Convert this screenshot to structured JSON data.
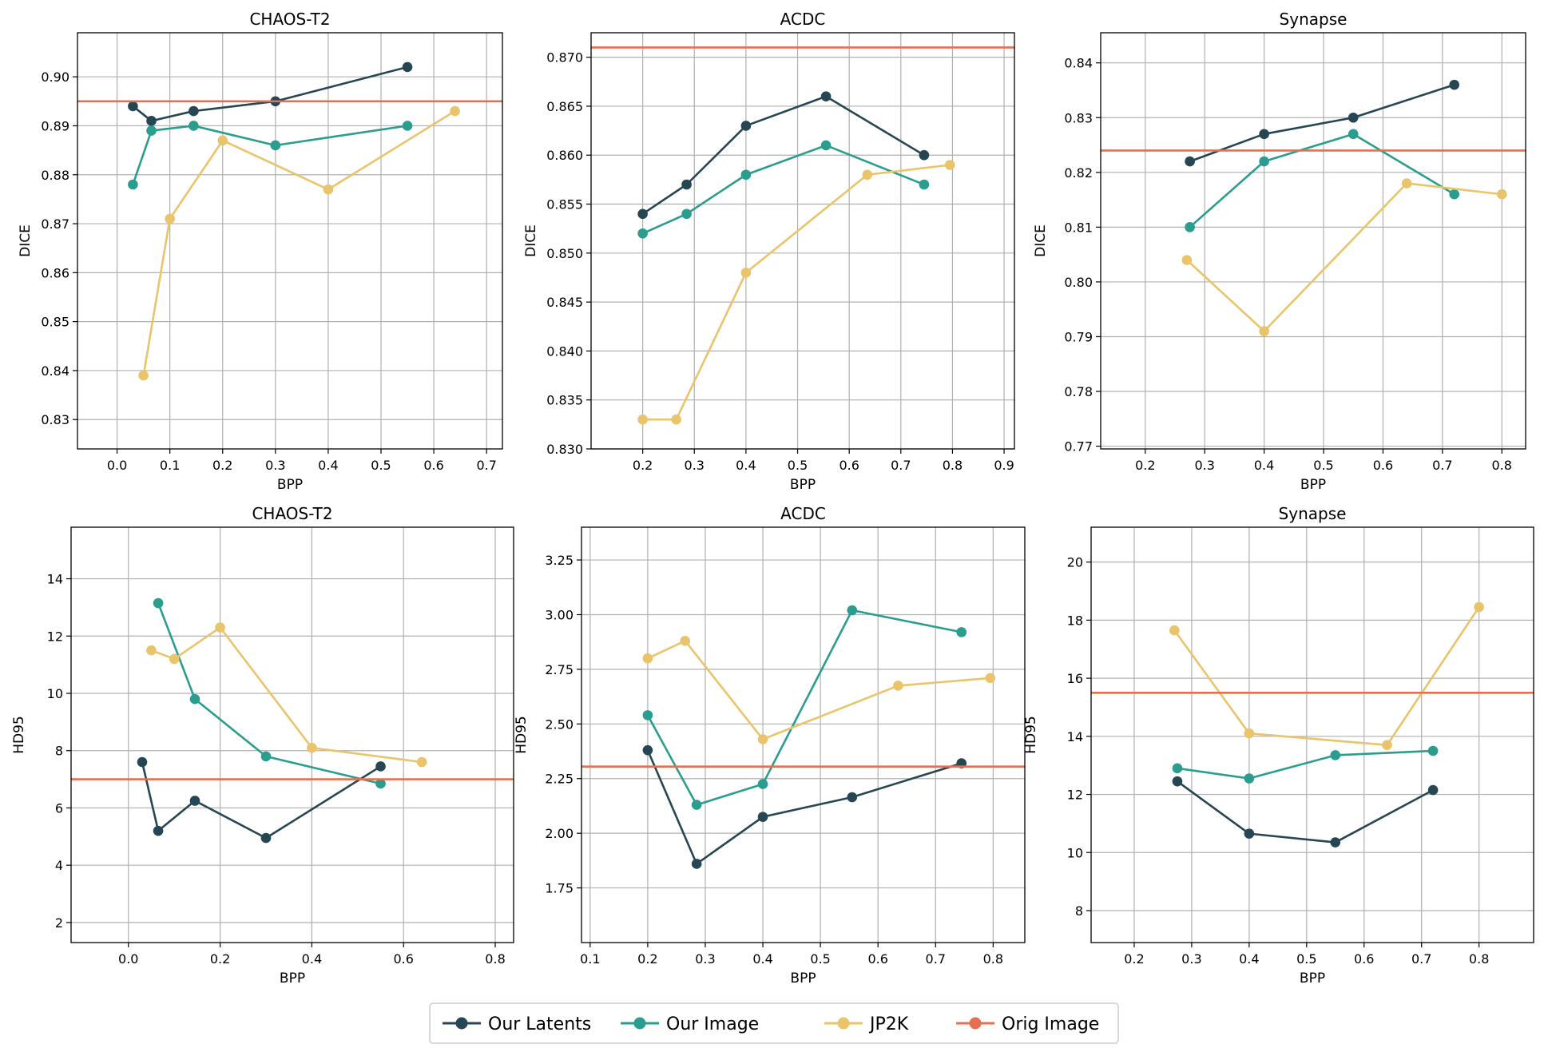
{
  "figure": {
    "colors": {
      "latents": "#264653",
      "image": "#2a9d8f",
      "jp2k": "#e9c46a",
      "orig": "#e76f51",
      "grid": "#b0b0b0",
      "frame": "#000000"
    }
  },
  "legend": [
    {
      "label": "Our Latents",
      "color": "#264653",
      "marker": "circle"
    },
    {
      "label": "Our Image",
      "color": "#2a9d8f",
      "marker": "circle"
    },
    {
      "label": "JP2K",
      "color": "#e9c46a",
      "marker": "circle"
    },
    {
      "label": "Orig Image",
      "color": "#e76f51",
      "marker": "line"
    }
  ],
  "chart_data": [
    {
      "type": "line",
      "title": "CHAOS-T2",
      "xlabel": "BPP",
      "ylabel": "DICE",
      "xlim": [
        -0.075,
        0.73
      ],
      "ylim": [
        0.824,
        0.909
      ],
      "xticks": [
        0.0,
        0.1,
        0.2,
        0.3,
        0.4,
        0.5,
        0.6,
        0.7
      ],
      "xtick_labels": [
        "0.0",
        "0.1",
        "0.2",
        "0.3",
        "0.4",
        "0.5",
        "0.6",
        "0.7"
      ],
      "yticks": [
        0.83,
        0.84,
        0.85,
        0.86,
        0.87,
        0.88,
        0.89,
        0.9
      ],
      "ytick_labels": [
        "0.83",
        "0.84",
        "0.85",
        "0.86",
        "0.87",
        "0.88",
        "0.89",
        "0.90"
      ],
      "grid": true,
      "hline": {
        "name": "Orig Image",
        "value": 0.895
      },
      "series": [
        {
          "name": "Our Latents",
          "x": [
            0.03,
            0.065,
            0.145,
            0.3,
            0.55
          ],
          "y": [
            0.894,
            0.891,
            0.893,
            0.895,
            0.902
          ]
        },
        {
          "name": "Our Image",
          "x": [
            0.03,
            0.065,
            0.145,
            0.3,
            0.55
          ],
          "y": [
            0.878,
            0.889,
            0.89,
            0.886,
            0.89
          ]
        },
        {
          "name": "JP2K",
          "x": [
            0.05,
            0.1,
            0.2,
            0.4,
            0.64
          ],
          "y": [
            0.839,
            0.871,
            0.887,
            0.877,
            0.893
          ]
        }
      ]
    },
    {
      "type": "line",
      "title": "ACDC",
      "xlabel": "BPP",
      "ylabel": "DICE",
      "xlim": [
        0.1,
        0.92
      ],
      "ylim": [
        0.83,
        0.8725
      ],
      "xticks": [
        0.2,
        0.3,
        0.4,
        0.5,
        0.6,
        0.7,
        0.8,
        0.9
      ],
      "xtick_labels": [
        "0.2",
        "0.3",
        "0.4",
        "0.5",
        "0.6",
        "0.7",
        "0.8",
        "0.9"
      ],
      "yticks": [
        0.83,
        0.835,
        0.84,
        0.845,
        0.85,
        0.855,
        0.86,
        0.865,
        0.87
      ],
      "ytick_labels": [
        "0.830",
        "0.835",
        "0.840",
        "0.845",
        "0.850",
        "0.855",
        "0.860",
        "0.865",
        "0.870"
      ],
      "grid": true,
      "hline": {
        "name": "Orig Image",
        "value": 0.871
      },
      "series": [
        {
          "name": "Our Latents",
          "x": [
            0.2,
            0.285,
            0.4,
            0.555,
            0.745
          ],
          "y": [
            0.854,
            0.857,
            0.863,
            0.866,
            0.86
          ]
        },
        {
          "name": "Our Image",
          "x": [
            0.2,
            0.285,
            0.4,
            0.555,
            0.745
          ],
          "y": [
            0.852,
            0.854,
            0.858,
            0.861,
            0.857
          ]
        },
        {
          "name": "JP2K",
          "x": [
            0.2,
            0.265,
            0.4,
            0.635,
            0.795
          ],
          "y": [
            0.833,
            0.833,
            0.848,
            0.858,
            0.859
          ]
        }
      ]
    },
    {
      "type": "line",
      "title": "Synapse",
      "xlabel": "BPP",
      "ylabel": "DICE",
      "xlim": [
        0.125,
        0.84
      ],
      "ylim": [
        0.7695,
        0.8455
      ],
      "xticks": [
        0.2,
        0.3,
        0.4,
        0.5,
        0.6,
        0.7,
        0.8
      ],
      "xtick_labels": [
        "0.2",
        "0.3",
        "0.4",
        "0.5",
        "0.6",
        "0.7",
        "0.8"
      ],
      "yticks": [
        0.77,
        0.78,
        0.79,
        0.8,
        0.81,
        0.82,
        0.83,
        0.84
      ],
      "ytick_labels": [
        "0.77",
        "0.78",
        "0.79",
        "0.80",
        "0.81",
        "0.82",
        "0.83",
        "0.84"
      ],
      "grid": true,
      "hline": {
        "name": "Orig Image",
        "value": 0.824
      },
      "series": [
        {
          "name": "Our Latents",
          "x": [
            0.275,
            0.4,
            0.55,
            0.72
          ],
          "y": [
            0.822,
            0.827,
            0.83,
            0.836
          ]
        },
        {
          "name": "Our Image",
          "x": [
            0.275,
            0.4,
            0.55,
            0.72
          ],
          "y": [
            0.81,
            0.822,
            0.827,
            0.816
          ]
        },
        {
          "name": "JP2K",
          "x": [
            0.27,
            0.4,
            0.64,
            0.8
          ],
          "y": [
            0.804,
            0.791,
            0.818,
            0.816
          ]
        }
      ]
    },
    {
      "type": "line",
      "title": "CHAOS-T2",
      "xlabel": "BPP",
      "ylabel": "HD95",
      "xlim": [
        -0.125,
        0.84
      ],
      "ylim": [
        1.3,
        15.8
      ],
      "xticks": [
        0.0,
        0.2,
        0.4,
        0.6,
        0.8
      ],
      "xtick_labels": [
        "0.0",
        "0.2",
        "0.4",
        "0.6",
        "0.8"
      ],
      "yticks": [
        2,
        4,
        6,
        8,
        10,
        12,
        14
      ],
      "ytick_labels": [
        "2",
        "4",
        "6",
        "8",
        "10",
        "12",
        "14"
      ],
      "grid": true,
      "hline": {
        "name": "Orig Image",
        "value": 7.0
      },
      "series": [
        {
          "name": "Our Latents",
          "x": [
            0.03,
            0.065,
            0.145,
            0.3,
            0.55
          ],
          "y": [
            7.6,
            5.2,
            6.25,
            4.95,
            7.45
          ]
        },
        {
          "name": "Our Image",
          "x": [
            0.065,
            0.145,
            0.3,
            0.55
          ],
          "y": [
            13.15,
            9.8,
            7.8,
            6.85
          ]
        },
        {
          "name": "JP2K",
          "x": [
            0.05,
            0.1,
            0.2,
            0.4,
            0.64
          ],
          "y": [
            11.5,
            11.2,
            12.3,
            8.1,
            7.6
          ]
        }
      ]
    },
    {
      "type": "line",
      "title": "ACDC",
      "xlabel": "BPP",
      "ylabel": "HD95",
      "xlim": [
        0.085,
        0.855
      ],
      "ylim": [
        1.5,
        3.4
      ],
      "xticks": [
        0.1,
        0.2,
        0.3,
        0.4,
        0.5,
        0.6,
        0.7,
        0.8
      ],
      "xtick_labels": [
        "0.1",
        "0.2",
        "0.3",
        "0.4",
        "0.5",
        "0.6",
        "0.7",
        "0.8"
      ],
      "yticks": [
        1.75,
        2.0,
        2.25,
        2.5,
        2.75,
        3.0,
        3.25
      ],
      "ytick_labels": [
        "1.75",
        "2.00",
        "2.25",
        "2.50",
        "2.75",
        "3.00",
        "3.25"
      ],
      "grid": true,
      "hline": {
        "name": "Orig Image",
        "value": 2.305
      },
      "series": [
        {
          "name": "Our Latents",
          "x": [
            0.2,
            0.285,
            0.4,
            0.555,
            0.745
          ],
          "y": [
            2.38,
            1.86,
            2.075,
            2.165,
            2.32
          ]
        },
        {
          "name": "Our Image",
          "x": [
            0.2,
            0.285,
            0.4,
            0.555,
            0.745
          ],
          "y": [
            2.54,
            2.13,
            2.225,
            3.02,
            2.92
          ]
        },
        {
          "name": "JP2K",
          "x": [
            0.2,
            0.265,
            0.4,
            0.635,
            0.795
          ],
          "y": [
            2.8,
            2.88,
            2.43,
            2.675,
            2.71
          ]
        }
      ]
    },
    {
      "type": "line",
      "title": "Synapse",
      "xlabel": "BPP",
      "ylabel": "HD95",
      "xlim": [
        0.125,
        0.895
      ],
      "ylim": [
        6.9,
        21.2
      ],
      "xticks": [
        0.2,
        0.3,
        0.4,
        0.5,
        0.6,
        0.7,
        0.8
      ],
      "xtick_labels": [
        "0.2",
        "0.3",
        "0.4",
        "0.5",
        "0.6",
        "0.7",
        "0.8"
      ],
      "yticks": [
        8,
        10,
        12,
        14,
        16,
        18,
        20
      ],
      "ytick_labels": [
        "8",
        "10",
        "12",
        "14",
        "16",
        "18",
        "20"
      ],
      "grid": true,
      "hline": {
        "name": "Orig Image",
        "value": 15.5
      },
      "series": [
        {
          "name": "Our Latents",
          "x": [
            0.275,
            0.4,
            0.55,
            0.72
          ],
          "y": [
            12.45,
            10.65,
            10.35,
            12.15
          ]
        },
        {
          "name": "Our Image",
          "x": [
            0.275,
            0.4,
            0.55,
            0.72
          ],
          "y": [
            12.9,
            12.55,
            13.35,
            13.5
          ]
        },
        {
          "name": "JP2K",
          "x": [
            0.27,
            0.4,
            0.64,
            0.8
          ],
          "y": [
            17.65,
            14.1,
            13.7,
            18.45
          ]
        }
      ]
    }
  ]
}
